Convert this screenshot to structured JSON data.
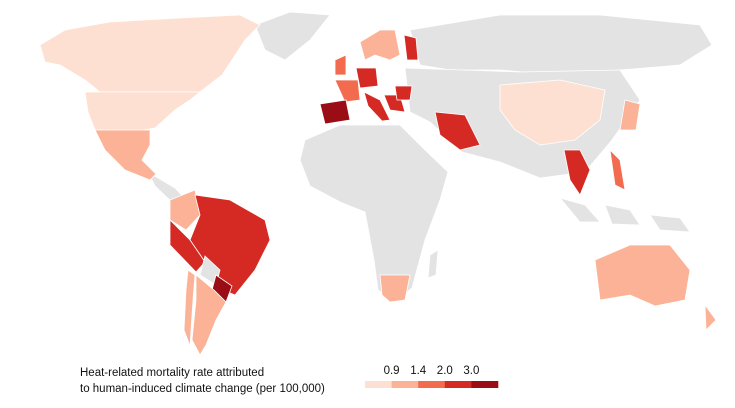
{
  "legend": {
    "title": [
      "Heat-related mortality rate attributed",
      "to human-induced climate change (per 100,000)"
    ],
    "ticks": [
      0.9,
      1.4,
      {
        "value": 2,
        "label": "2.0"
      },
      {
        "value": 3,
        "label": "3.0"
      }
    ],
    "colors": [
      "#fde0d2",
      "#fbb296",
      "#f26b4f",
      "#d42a23",
      "#9b0d16"
    ],
    "no_data_color": "#e3e3e3"
  }
}
